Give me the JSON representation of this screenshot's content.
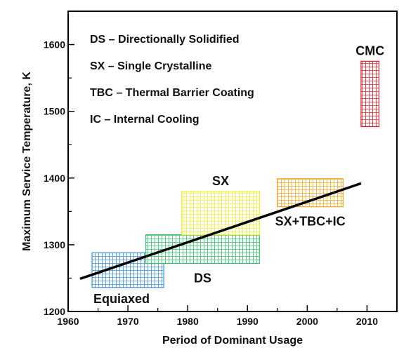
{
  "chart_data": {
    "type": "bar",
    "title": "",
    "xlabel": "Period of Dominant Usage",
    "ylabel": "Maximum Service Temperature, K",
    "xlim": [
      1960,
      2015
    ],
    "ylim": [
      1200,
      1650
    ],
    "x_ticks": [
      1960,
      1970,
      1980,
      1990,
      2000,
      2010
    ],
    "y_ticks": [
      1200,
      1300,
      1400,
      1500,
      1600
    ],
    "grid": false,
    "legend": {
      "placement": "top-left",
      "entries": [
        "DS – Directionally Solidified",
        "SX – Single Crystalline",
        "TBC – Thermal Barrier Coating",
        "IC – Internal Cooling"
      ]
    },
    "regions": [
      {
        "label": "Equiaxed",
        "x_start": 1964,
        "x_end": 1976,
        "y_low": 1236,
        "y_high": 1288,
        "color": "#3e8fd8",
        "label_anchor": "below-left"
      },
      {
        "label": "DS",
        "x_start": 1973,
        "x_end": 1992,
        "y_low": 1272,
        "y_high": 1315,
        "color": "#33c26a",
        "label_anchor": "below"
      },
      {
        "label": "SX",
        "x_start": 1979,
        "x_end": 1992,
        "y_low": 1315,
        "y_high": 1380,
        "color": "#f2ef3a",
        "label_anchor": "above"
      },
      {
        "label": "SX+TBC+IC",
        "x_start": 1995,
        "x_end": 2006,
        "y_low": 1357,
        "y_high": 1399,
        "color": "#f5a623",
        "label_anchor": "below"
      },
      {
        "label": "CMC",
        "x_start": 2009,
        "x_end": 2012,
        "y_low": 1477,
        "y_high": 1575,
        "color": "#e0212b",
        "label_anchor": "above"
      }
    ],
    "trend_line": {
      "x": [
        1962,
        2009
      ],
      "y": [
        1249,
        1392
      ]
    }
  }
}
